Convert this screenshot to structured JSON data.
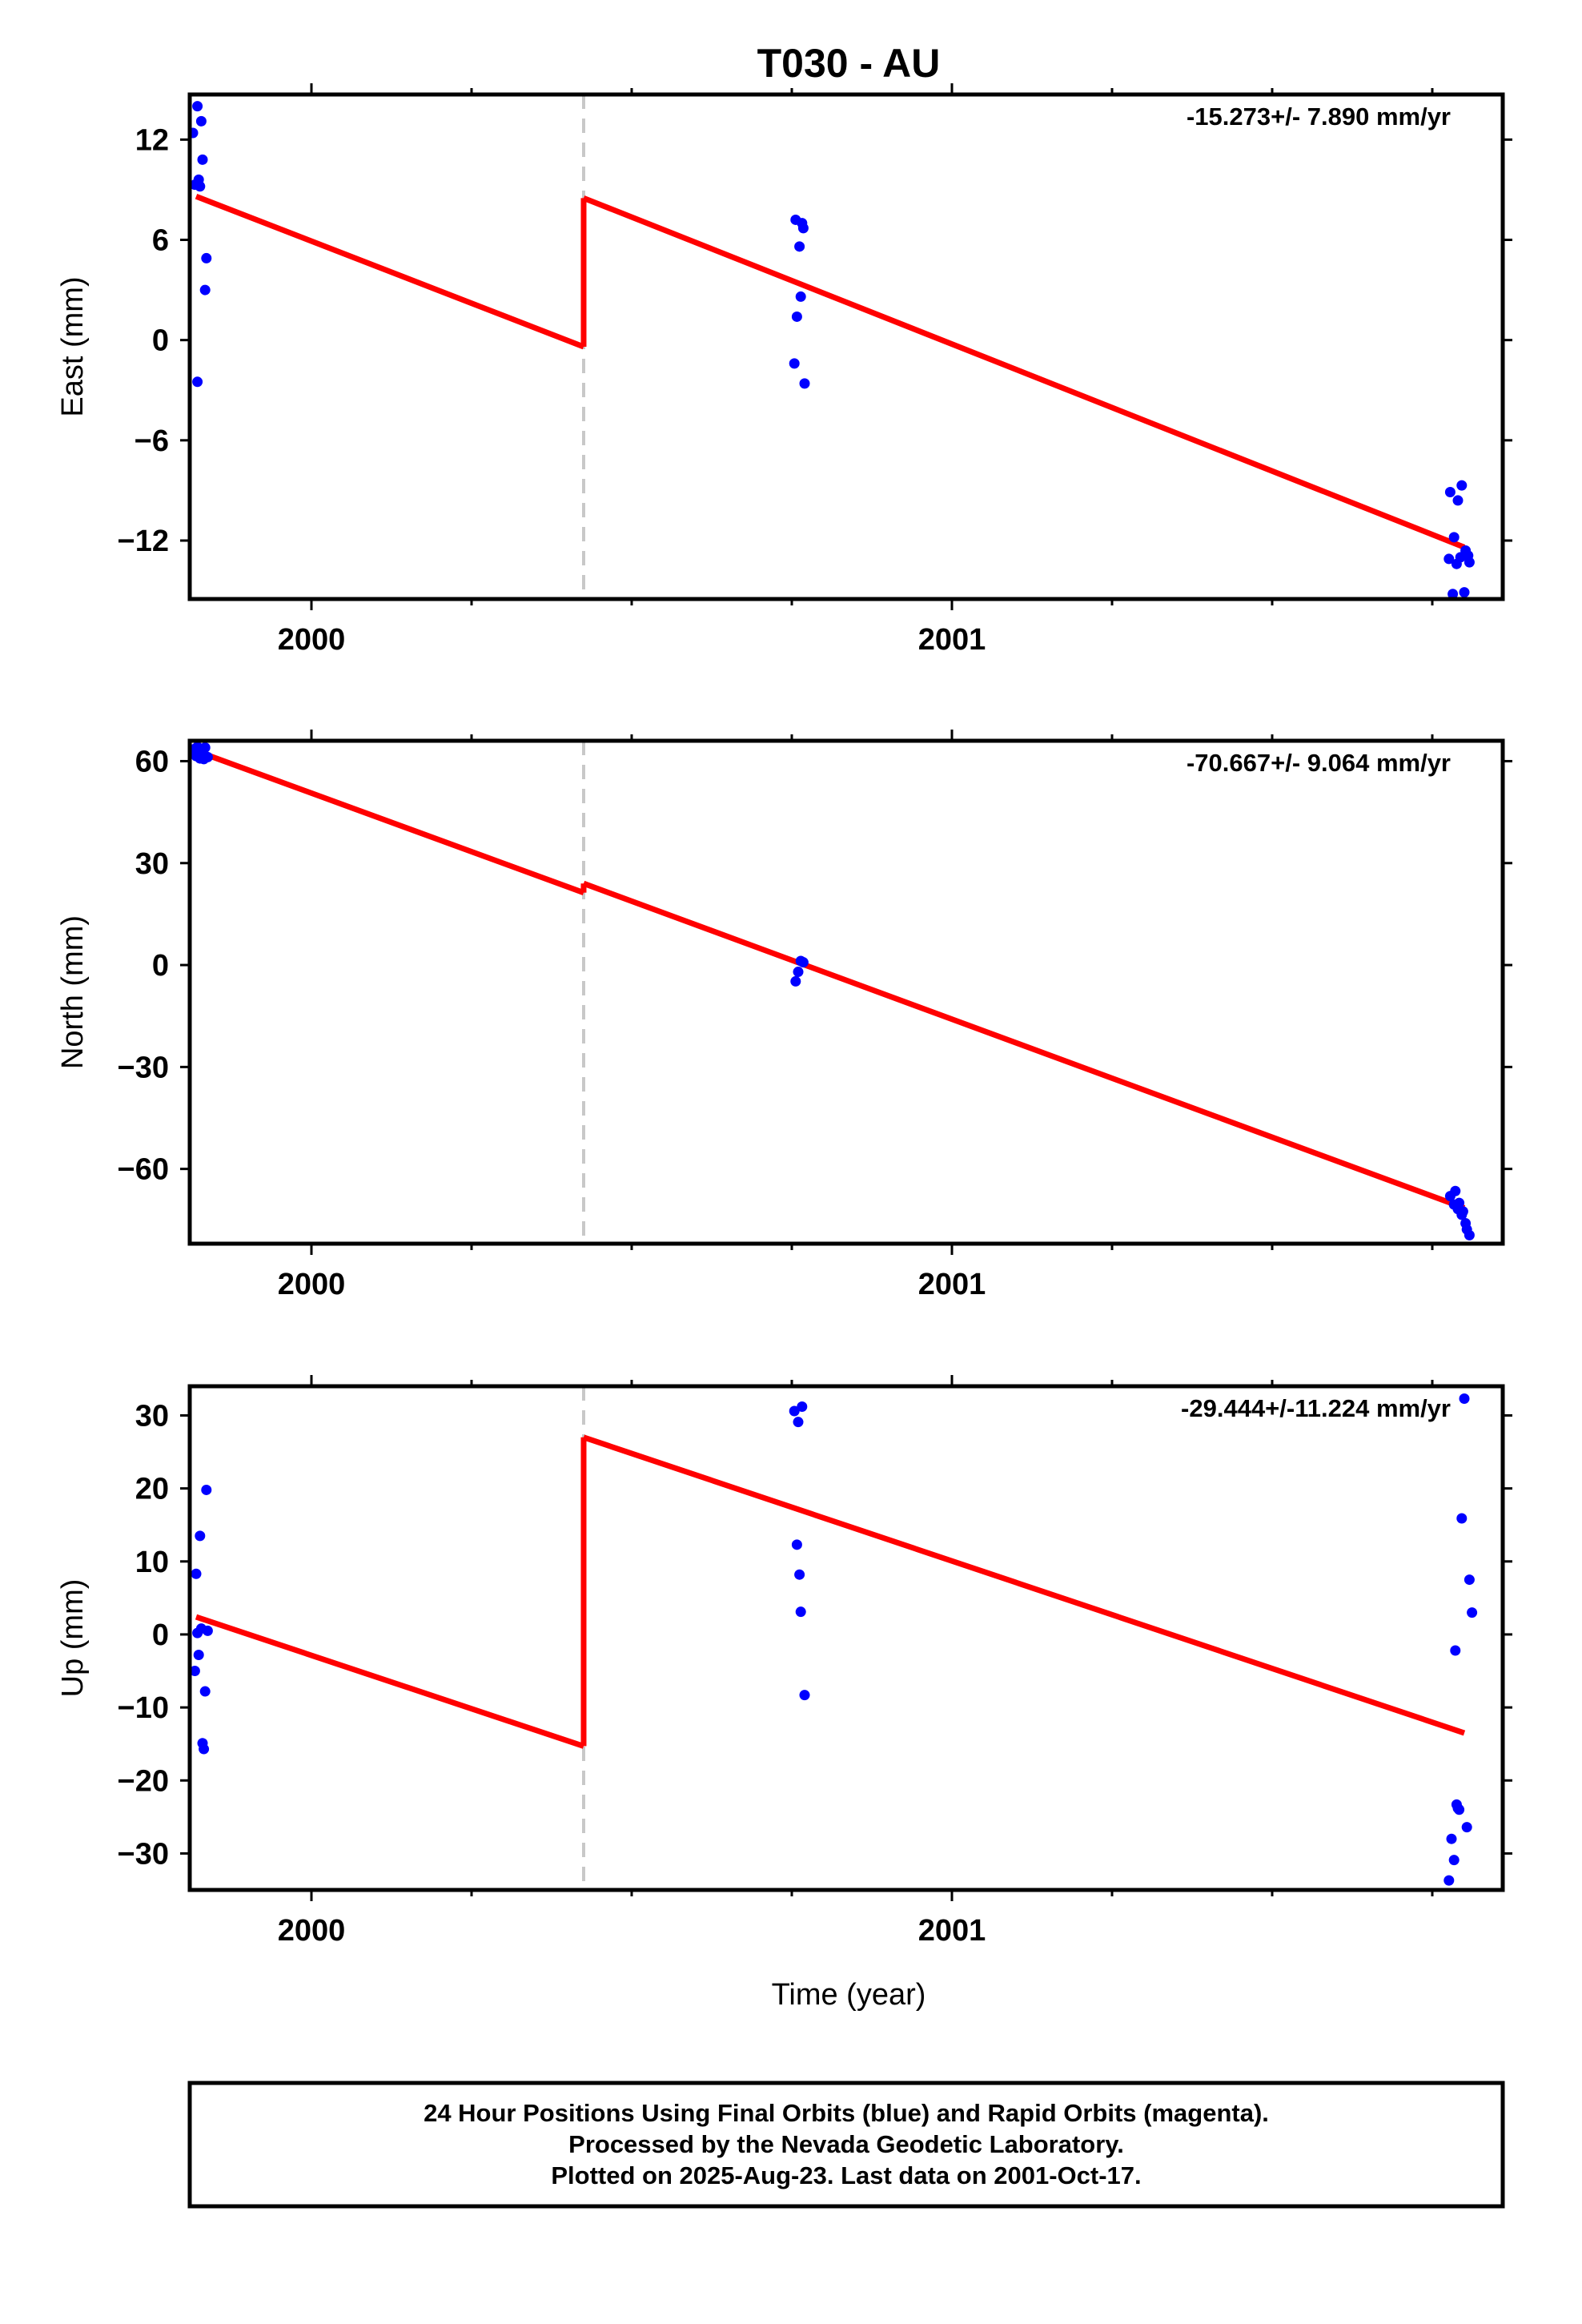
{
  "chart_data": {
    "title": "T030 - AU",
    "type": "scatter",
    "x_axis": {
      "label": "Time (year)",
      "range": [
        1999.81,
        2001.86
      ],
      "major_ticks": [
        2000,
        2001
      ],
      "tick_labels": [
        "2000",
        "2001"
      ],
      "minor_ticks": [
        2000.25,
        2000.5,
        2000.75,
        2001.25,
        2001.5,
        2001.75
      ]
    },
    "offset_marker_x": 2000.425,
    "panels": [
      {
        "id": "east",
        "ylabel": "East (mm)",
        "ylim": [
          -15.5,
          14.7
        ],
        "yticks": [
          12,
          6,
          0,
          -6,
          -12
        ],
        "ytick_labels": [
          "12",
          "6",
          "0",
          "−6",
          "−12"
        ],
        "rate_label": "-15.273+/- 7.890 mm/yr",
        "points": {
          "x": [
            1999.815,
            1999.822,
            1999.828,
            1999.818,
            1999.824,
            1999.83,
            1999.836,
            1999.834,
            1999.822,
            1999.826,
            2000.756,
            2000.762,
            2000.768,
            2000.758,
            2000.764,
            2000.77,
            2000.754,
            2000.766,
            2001.778,
            2001.784,
            2001.79,
            2001.796,
            2001.802,
            2001.808,
            2001.776,
            2001.782,
            2001.788,
            2001.794,
            2001.8,
            2001.806
          ],
          "y": [
            12.4,
            14.0,
            13.1,
            9.3,
            9.6,
            10.8,
            4.9,
            3.0,
            -2.5,
            9.2,
            7.2,
            5.6,
            6.7,
            1.4,
            2.6,
            -2.6,
            -1.4,
            7.0,
            -9.1,
            -11.8,
            -9.6,
            -8.7,
            -12.6,
            -13.3,
            -13.1,
            -15.2,
            -13.4,
            -13.0,
            -15.1,
            -12.9
          ]
        },
        "trend": [
          {
            "x": [
              1999.82,
              2000.425
            ],
            "y": [
              8.6,
              -0.4
            ]
          },
          {
            "x": [
              2000.425,
              2001.8
            ],
            "y": [
              8.5,
              -12.4
            ]
          }
        ]
      },
      {
        "id": "north",
        "ylabel": "North (mm)",
        "ylim": [
          -82,
          66
        ],
        "yticks": [
          60,
          30,
          0,
          -30,
          -60
        ],
        "ytick_labels": [
          "60",
          "30",
          "0",
          "−30",
          "−60"
        ],
        "rate_label": "-70.667+/- 9.064 mm/yr",
        "points": {
          "x": [
            1999.816,
            1999.822,
            1999.828,
            1999.834,
            1999.82,
            1999.826,
            1999.832,
            1999.838,
            2000.756,
            2000.76,
            2000.764,
            2000.768,
            2001.778,
            2001.784,
            2001.79,
            2001.796,
            2001.802,
            2001.808,
            2001.786,
            2001.792,
            2001.798,
            2001.804
          ],
          "y": [
            63.5,
            64.2,
            62.5,
            64.0,
            61.5,
            60.8,
            60.6,
            61.2,
            -4.8,
            -2.0,
            1.2,
            0.8,
            -68.0,
            -70.5,
            -71.8,
            -73.5,
            -76.0,
            -79.5,
            -66.5,
            -70.0,
            -72.5,
            -77.8
          ]
        },
        "trend": [
          {
            "x": [
              1999.82,
              2000.425
            ],
            "y": [
              63.0,
              21.3
            ]
          },
          {
            "x": [
              2000.425,
              2001.8
            ],
            "y": [
              24.0,
              -71.5
            ]
          }
        ]
      },
      {
        "id": "up",
        "ylabel": "Up (mm)",
        "ylim": [
          -35,
          34
        ],
        "yticks": [
          30,
          20,
          10,
          0,
          -10,
          -20,
          -30
        ],
        "ytick_labels": [
          "30",
          "20",
          "10",
          "0",
          "−10",
          "−20",
          "−30"
        ],
        "rate_label": "-29.444+/-11.224 mm/yr",
        "points": {
          "x": [
            1999.818,
            1999.82,
            1999.822,
            1999.824,
            1999.826,
            1999.828,
            1999.83,
            1999.832,
            1999.834,
            1999.836,
            1999.838,
            2000.754,
            2000.758,
            2000.762,
            2000.766,
            2000.77,
            2000.76,
            2000.764,
            2001.776,
            2001.78,
            2001.784,
            2001.788,
            2001.792,
            2001.796,
            2001.8,
            2001.804,
            2001.808,
            2001.812,
            2001.786,
            2001.79
          ],
          "y": [
            -5.0,
            8.3,
            0.2,
            -2.8,
            13.5,
            0.8,
            -14.9,
            -15.7,
            -7.8,
            19.8,
            0.5,
            30.6,
            12.3,
            8.2,
            31.2,
            -8.3,
            29.1,
            3.1,
            -33.7,
            -28.0,
            -30.9,
            -23.3,
            -24.0,
            15.9,
            32.3,
            -26.4,
            7.5,
            3.0,
            -2.2,
            -23.8
          ],
          "_note": ""
        },
        "trend": [
          {
            "x": [
              1999.82,
              2000.425
            ],
            "y": [
              2.4,
              -15.3
            ]
          },
          {
            "x": [
              2000.425,
              2001.8
            ],
            "y": [
              27.0,
              -13.5
            ]
          }
        ]
      }
    ],
    "colors": {
      "points": "#0000ff",
      "trend": "#ff0000",
      "offset_marker": "#c8c8c8",
      "frame": "#000000"
    },
    "grid": false,
    "footer": [
      "24 Hour Positions Using Final Orbits (blue) and Rapid Orbits (magenta).",
      "Processed by the Nevada Geodetic Laboratory.",
      "Plotted on 2025-Aug-23. Last data on 2001-Oct-17."
    ]
  }
}
